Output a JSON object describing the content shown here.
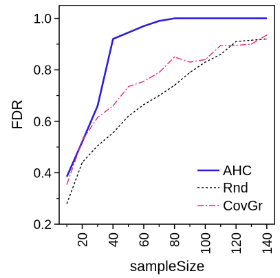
{
  "chart_data": {
    "type": "line",
    "xlabel": "sampleSize",
    "ylabel": "FDR",
    "xlim": [
      5,
      145
    ],
    "ylim": [
      0.2,
      1.05
    ],
    "x_ticks": [
      20,
      40,
      60,
      80,
      100,
      120,
      140
    ],
    "y_ticks": [
      0.2,
      0.4,
      0.6,
      0.8,
      1.0
    ],
    "x_tick_labels": [
      "20",
      "40",
      "60",
      "80",
      "100",
      "120",
      "140"
    ],
    "y_tick_labels": [
      "0.2",
      "0.4",
      "0.6",
      "0.8",
      "1.0"
    ],
    "legend_position": "bottom-right",
    "series": [
      {
        "name": "AHC",
        "color": "#2a1cdc",
        "dash": "solid",
        "x": [
          10,
          20,
          30,
          40,
          50,
          60,
          70,
          80,
          90,
          100,
          110,
          120,
          130,
          140
        ],
        "y": [
          0.385,
          0.52,
          0.66,
          0.92,
          0.945,
          0.97,
          0.99,
          1.0,
          1.0,
          1.0,
          1.0,
          1.0,
          1.0,
          1.0
        ]
      },
      {
        "name": "Rnd",
        "color": "#000000",
        "dash": "dotted",
        "x": [
          10,
          20,
          30,
          40,
          50,
          60,
          70,
          80,
          90,
          100,
          110,
          120,
          130,
          140
        ],
        "y": [
          0.28,
          0.44,
          0.505,
          0.555,
          0.62,
          0.665,
          0.7,
          0.74,
          0.79,
          0.83,
          0.86,
          0.91,
          0.915,
          0.92
        ]
      },
      {
        "name": "CovGr",
        "color": "#e0267a",
        "dash": "dashdot",
        "x": [
          10,
          20,
          30,
          40,
          50,
          60,
          70,
          80,
          90,
          100,
          110,
          120,
          130,
          140
        ],
        "y": [
          0.355,
          0.525,
          0.615,
          0.66,
          0.735,
          0.755,
          0.79,
          0.85,
          0.83,
          0.84,
          0.895,
          0.895,
          0.9,
          0.935
        ]
      }
    ]
  }
}
